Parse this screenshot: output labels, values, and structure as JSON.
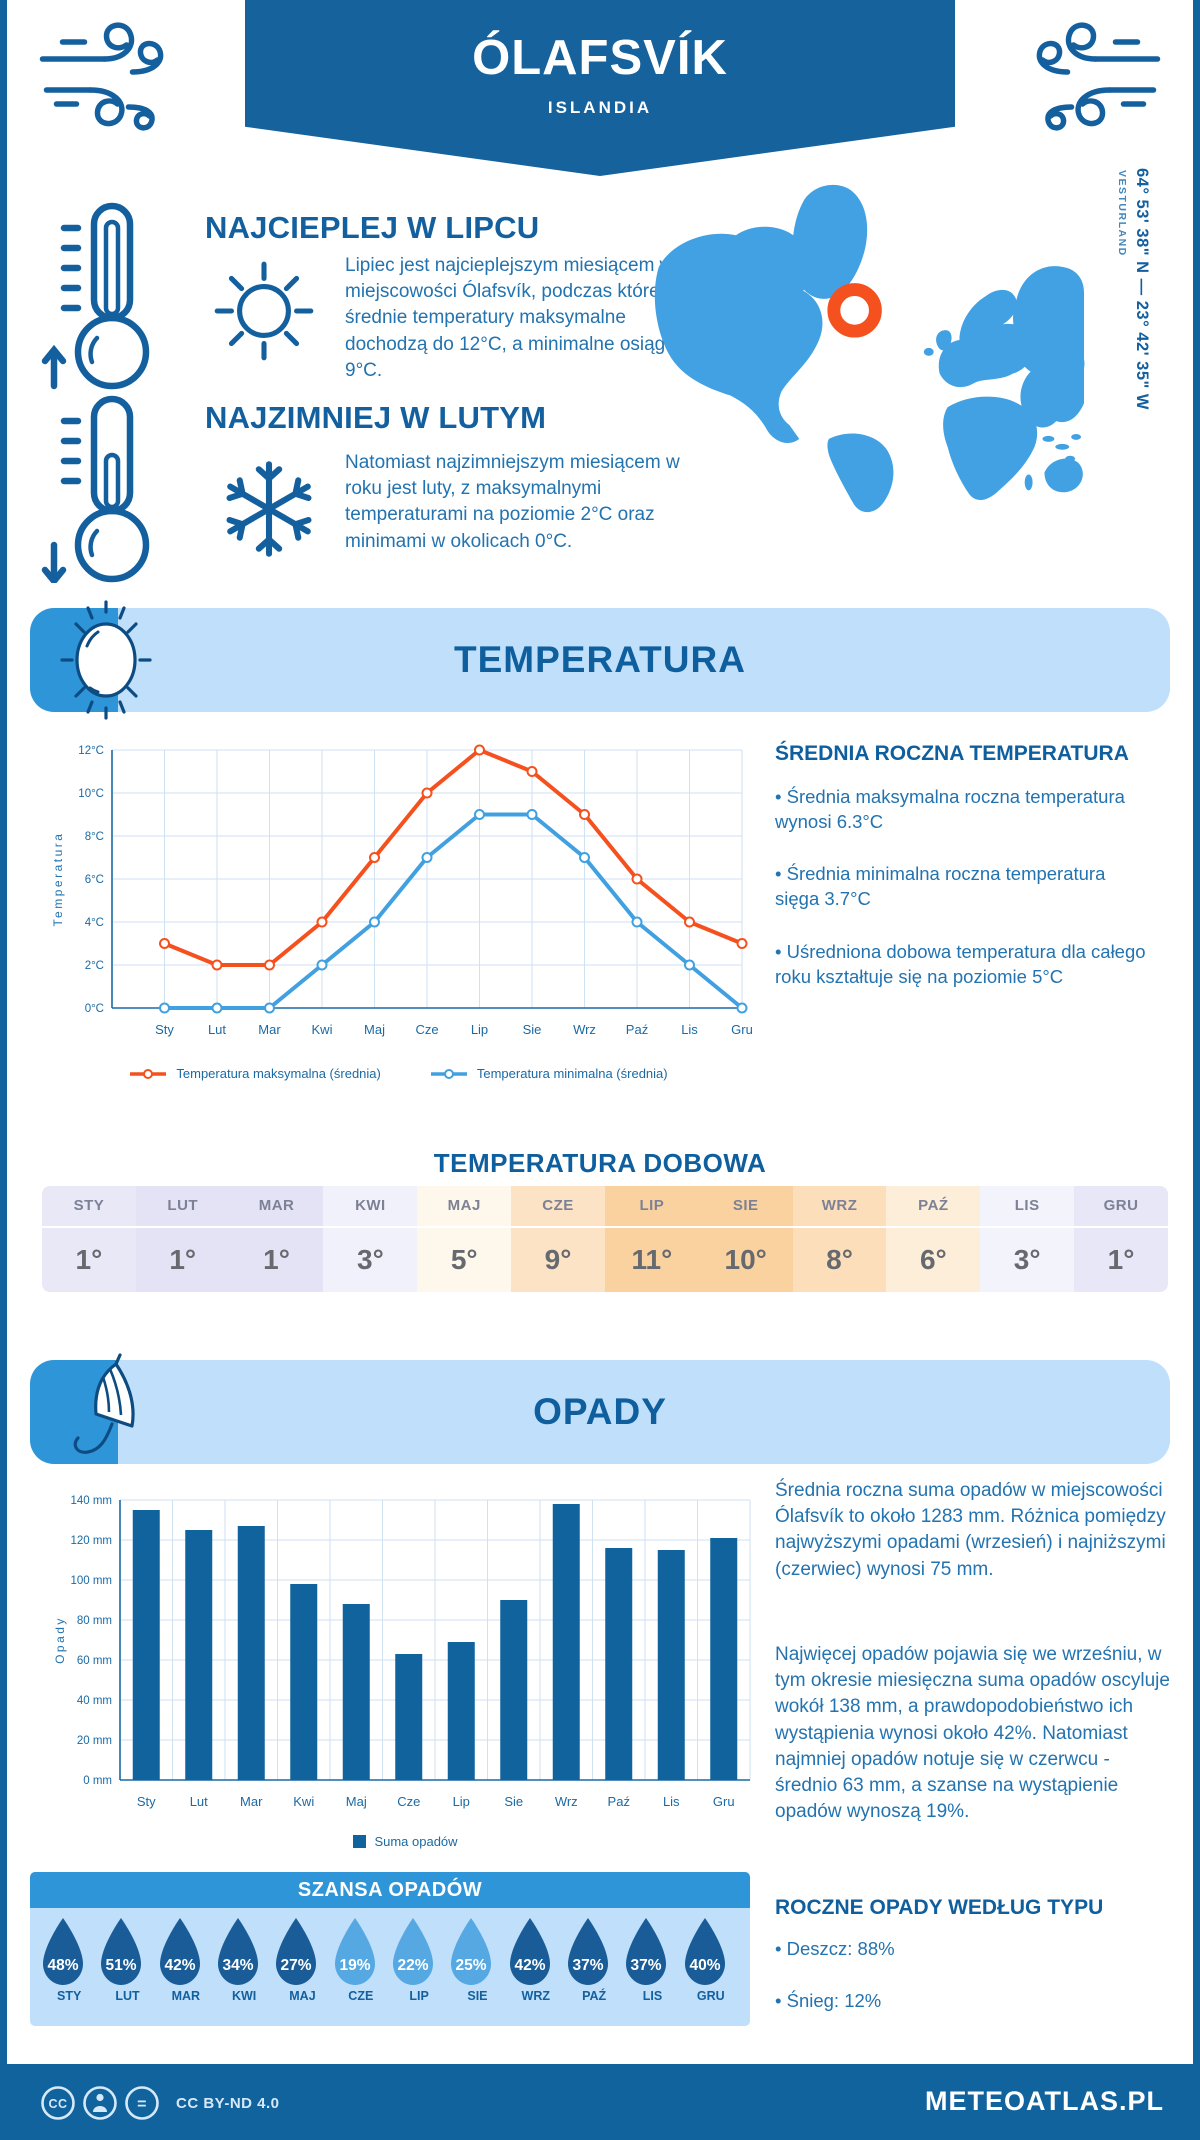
{
  "colors": {
    "primary": "#15629c",
    "accent": "#2e96d8",
    "panel": "#bfdffa",
    "map": "#42a1e3",
    "heading": "#0f5f9e",
    "body_text": "#2273b0",
    "max_line": "#f4511e",
    "min_line": "#41a0e0",
    "bar": "#11639e",
    "marker": "#f4511e",
    "drop_dark": "#1a5c97",
    "drop_light": "#55a8e2"
  },
  "header": {
    "city": "ÓLAFSVÍK",
    "country": "ISLANDIA"
  },
  "location": {
    "coordinates": "64° 53' 38\" N — 23° 42' 35\" W",
    "region": "VESTURLAND"
  },
  "warmest": {
    "title": "NAJCIEPLEJ W LIPCU",
    "text": "Lipiec jest najcieplejszym miesiącem w miejscowości Ólafsvík, podczas którego średnie temperatury maksymalne dochodzą do 12°C, a minimalne osiągają 9°C."
  },
  "coldest": {
    "title": "NAJZIMNIEJ W LUTYM",
    "text": "Natomiast najzimniejszym miesiącem w roku jest luty, z maksymalnymi temperaturami na poziomie 2°C oraz minimami w okolicach 0°C."
  },
  "temperature": {
    "section_title": "TEMPERATURA",
    "annual_title": "ŚREDNIA ROCZNA TEMPERATURA",
    "annual_points": [
      "• Średnia maksymalna roczna temperatura wynosi 6.3°C",
      "• Średnia minimalna roczna temperatura sięga 3.7°C",
      "• Uśredniona dobowa temperatura dla całego roku kształtuje się na poziomie 5°C"
    ],
    "daily_title": "TEMPERATURA DOBOWA",
    "daily": {
      "months": [
        "STY",
        "LUT",
        "MAR",
        "KWI",
        "MAJ",
        "CZE",
        "LIP",
        "SIE",
        "WRZ",
        "PAŹ",
        "LIS",
        "GRU"
      ],
      "values": [
        "1°",
        "1°",
        "1°",
        "3°",
        "5°",
        "9°",
        "11°",
        "10°",
        "8°",
        "6°",
        "3°",
        "1°"
      ],
      "cell_colors": [
        "#e8e8f7",
        "#e3e3f5",
        "#e3e3f5",
        "#f1f1fb",
        "#fdf7ec",
        "#fce3c5",
        "#fad2a0",
        "#fad2a0",
        "#fcdfba",
        "#fdeeda",
        "#f3f3fc",
        "#e7e7f7"
      ]
    }
  },
  "precipitation": {
    "section_title": "OPADY",
    "summary": "Średnia roczna suma opadów w miejscowości Ólafsvík to około 1283 mm. Różnica pomiędzy najwyższymi opadami (wrzesień) i najniższymi (czerwiec) wynosi 75 mm.",
    "details": "Najwięcej opadów pojawia się we wrześniu, w tym okresie miesięczna suma opadów oscyluje wokół 138 mm, a prawdopodobieństwo ich wystąpienia wynosi około 42%. Natomiast najmniej opadów notuje się w czerwcu - średnio 63 mm, a szanse na wystąpienie opadów wynoszą 19%.",
    "type_title": "ROCZNE OPADY WEDŁUG TYPU",
    "type_points": [
      "• Deszcz: 88%",
      "• Śnieg: 12%"
    ],
    "chance": {
      "title": "SZANSA OPADÓW",
      "months": [
        "STY",
        "LUT",
        "MAR",
        "KWI",
        "MAJ",
        "CZE",
        "LIP",
        "SIE",
        "WRZ",
        "PAŹ",
        "LIS",
        "GRU"
      ],
      "values": [
        "48%",
        "51%",
        "42%",
        "34%",
        "27%",
        "19%",
        "22%",
        "25%",
        "42%",
        "37%",
        "37%",
        "40%"
      ],
      "variant": [
        "dark",
        "dark",
        "dark",
        "dark",
        "dark",
        "light",
        "light",
        "light",
        "dark",
        "dark",
        "dark",
        "dark"
      ]
    }
  },
  "footer": {
    "license": "CC BY-ND 4.0",
    "site": "METEOATLAS.PL"
  },
  "chart_data": [
    {
      "type": "line",
      "title": "",
      "categories": [
        "Sty",
        "Lut",
        "Mar",
        "Kwi",
        "Maj",
        "Cze",
        "Lip",
        "Sie",
        "Wrz",
        "Paź",
        "Lis",
        "Gru"
      ],
      "series": [
        {
          "name": "Temperatura maksymalna (średnia)",
          "color": "#f4511e",
          "values": [
            3,
            2,
            2,
            4,
            7,
            10,
            12,
            11,
            9,
            6,
            4,
            3
          ]
        },
        {
          "name": "Temperatura minimalna (średnia)",
          "color": "#41a0e0",
          "values": [
            0,
            0,
            0,
            2,
            4,
            7,
            9,
            9,
            7,
            4,
            2,
            0
          ]
        }
      ],
      "xlabel": "",
      "ylabel": "Temperatura",
      "ylim": [
        0,
        12
      ],
      "ytick_step": 2,
      "ytick_suffix": "°C",
      "grid": true,
      "legend_position": "bottom"
    },
    {
      "type": "bar",
      "title": "",
      "categories": [
        "Sty",
        "Lut",
        "Mar",
        "Kwi",
        "Maj",
        "Cze",
        "Lip",
        "Sie",
        "Wrz",
        "Paź",
        "Lis",
        "Gru"
      ],
      "series": [
        {
          "name": "Suma opadów",
          "color": "#11639e",
          "values": [
            135,
            125,
            127,
            98,
            88,
            63,
            69,
            90,
            138,
            116,
            115,
            121
          ]
        }
      ],
      "xlabel": "",
      "ylabel": "Opady",
      "ylim": [
        0,
        140
      ],
      "ytick_step": 20,
      "ytick_suffix": " mm",
      "grid": true,
      "legend_position": "bottom"
    }
  ]
}
